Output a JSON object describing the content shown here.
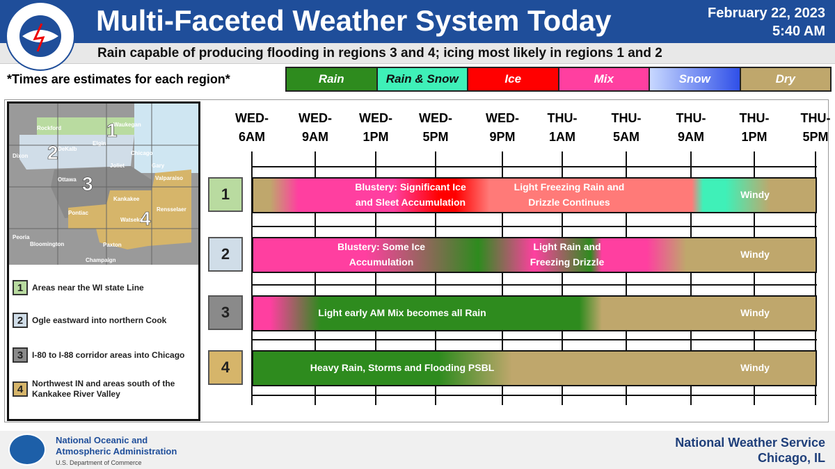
{
  "header": {
    "title": "Multi-Faceted Weather System Today",
    "date": "February 22, 2023",
    "time": "5:40 AM",
    "subtitle": "Rain capable of producing flooding in regions 3 and 4; icing most likely in regions 1 and 2",
    "logo_text": "NATIONAL WEATHER SERVICE"
  },
  "note": "*Times are estimates for each region*",
  "legend": [
    {
      "label": "Rain",
      "color": "#2e8b1e",
      "text": "#fff"
    },
    {
      "label": "Rain & Snow",
      "color": "#3ff0b8",
      "text": "#111"
    },
    {
      "label": "Ice",
      "color": "#ff0000",
      "text": "#fff"
    },
    {
      "label": "Mix",
      "color": "#ff3fa0",
      "text": "#fff"
    },
    {
      "label": "Snow",
      "color": "#3050e8",
      "text": "#fff"
    },
    {
      "label": "Dry",
      "color": "#bfa76c",
      "text": "#fff"
    }
  ],
  "times": [
    "WED-|6AM",
    "WED-|9AM",
    "WED-|1PM",
    "WED-|5PM",
    "WED-|9PM",
    "THU-|1AM",
    "THU-|5AM",
    "THU-|9AM",
    "THU-|1PM",
    "THU-|5PM"
  ],
  "map": {
    "cities": [
      "Rockford",
      "Waukegan",
      "Elgin",
      "DeKalb",
      "Dixon",
      "Chicago",
      "Joliet",
      "Gary",
      "Ottawa",
      "Valparaiso",
      "Kankakee",
      "Pontiac",
      "Watseka",
      "Rensselaer",
      "Peoria",
      "Bloomington",
      "Paxton",
      "Champaign"
    ]
  },
  "regions": [
    {
      "num": "1",
      "color": "#b9dba0",
      "desc": "Areas near the WI state Line",
      "labels": [
        "Blustery: Significant Ice|and Sleet Accumulation",
        "Light Freezing Rain and|Drizzle Continues",
        "Windy"
      ]
    },
    {
      "num": "2",
      "color": "#d0dde8",
      "desc": "Ogle eastward into northern Cook",
      "labels": [
        "Blustery: Some Ice|Accumulation",
        "Light Rain and|Freezing  Drizzle",
        "Windy"
      ]
    },
    {
      "num": "3",
      "color": "#8a8a8a",
      "desc": "I-80 to I-88 corridor areas into Chicago",
      "labels": [
        "Light early AM Mix becomes all Rain",
        "Windy"
      ]
    },
    {
      "num": "4",
      "color": "#d6b56a",
      "desc": "Northwest IN and areas south of the Kankakee River Valley",
      "labels": [
        "Heavy Rain, Storms and Flooding PSBL",
        "Windy"
      ]
    }
  ],
  "footer": {
    "noaa_line1": "National Oceanic and",
    "noaa_line2": "Atmospheric Administration",
    "noaa_line3": "U.S. Department of Commerce",
    "nws_line1": "National Weather Service",
    "nws_line2": "Chicago, IL"
  }
}
